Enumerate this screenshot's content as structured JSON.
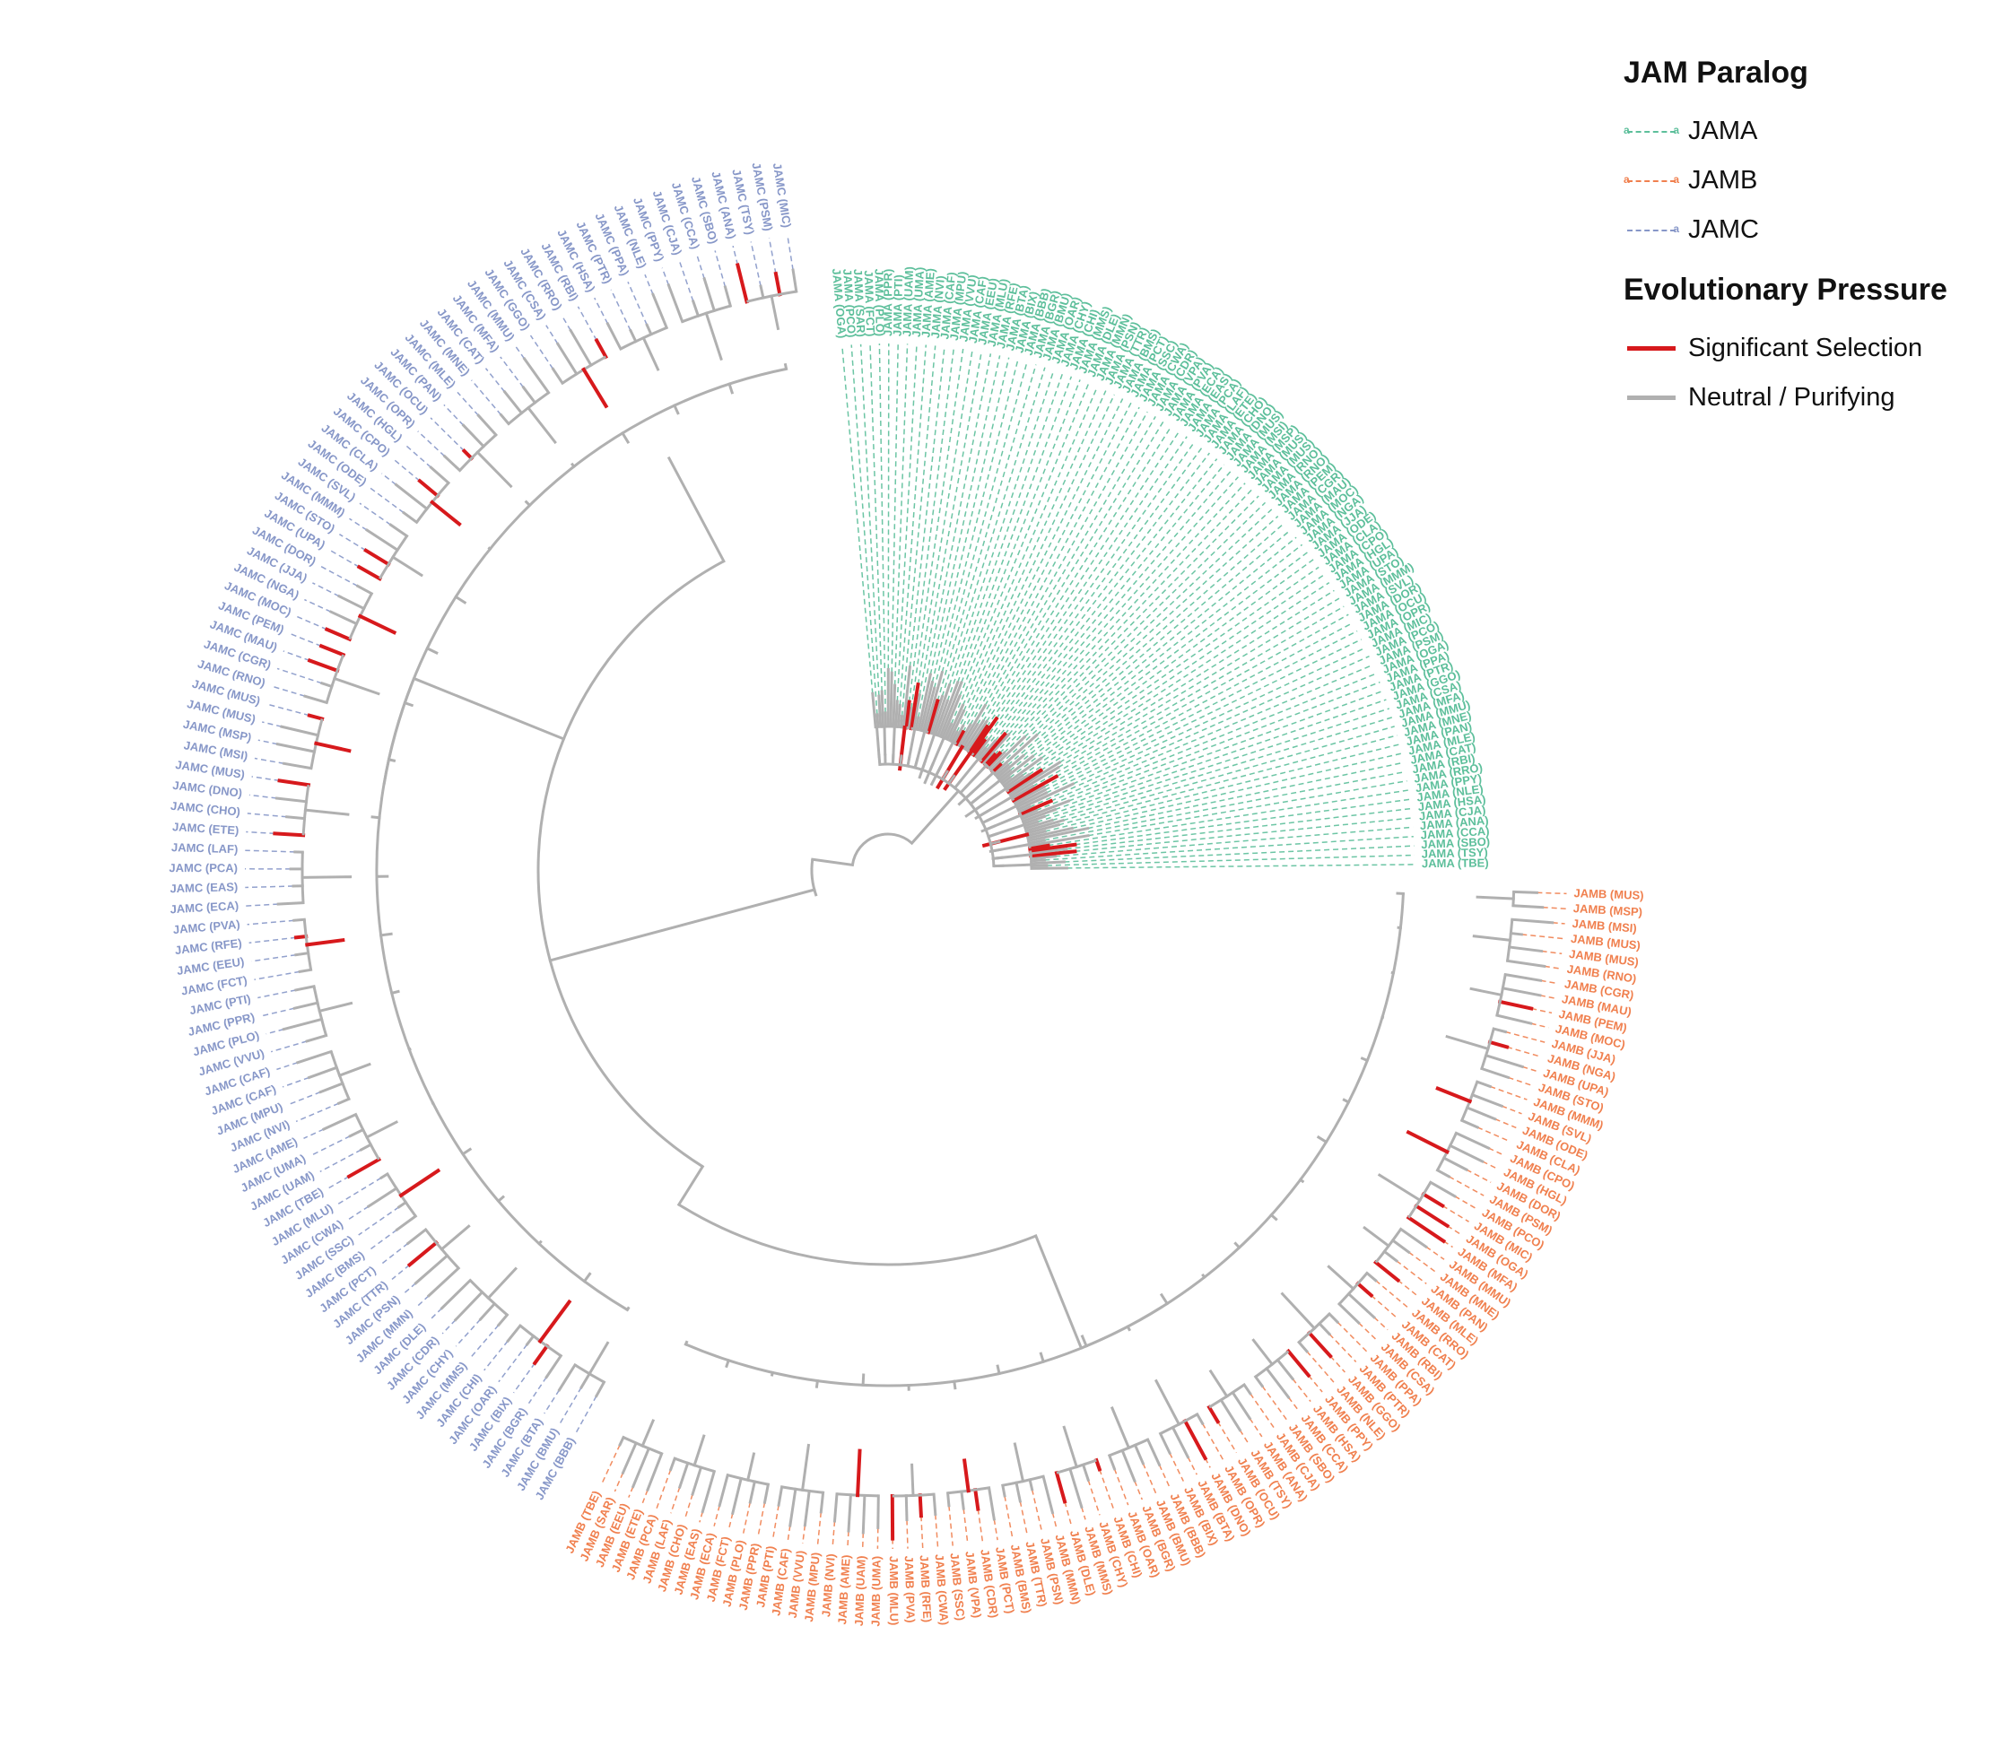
{
  "legend": {
    "paralog_title": "JAM Paralog",
    "paralogs": [
      {
        "label": "JAMA",
        "color": "#5dbf9b"
      },
      {
        "label": "JAMB",
        "color": "#f0804f"
      },
      {
        "label": "JAMC",
        "color": "#8797c8"
      }
    ],
    "pressure_title": "Evolutionary Pressure",
    "pressure": [
      {
        "label": "Significant Selection",
        "color": "#d7191c"
      },
      {
        "label": "Neutral / Purifying",
        "color": "#b0b0b0"
      }
    ]
  },
  "tree": {
    "clades": [
      {
        "paralog": "JAMA",
        "color": "#5dbf9b",
        "tips": [
          "TBE",
          "TSY",
          "SBO",
          "CCA",
          "ANA",
          "CJA",
          "HSA",
          "NLE",
          "PPY",
          "RRO",
          "RBI",
          "CAT",
          "MLE",
          "PAN",
          "MNE",
          "MMU",
          "MFA",
          "CSA",
          "GGO",
          "PTR",
          "PPA",
          "OGA",
          "PSM",
          "PCO",
          "MIC",
          "OPR",
          "OCU",
          "DOR",
          "SVL",
          "MMM",
          "STO",
          "UPA",
          "HGL",
          "CPO",
          "CLA",
          "ODE",
          "JJA",
          "NGA",
          "MOC",
          "MAU",
          "CGR",
          "PEM",
          "RNO",
          "RNO",
          "MUS",
          "MUS",
          "MSP",
          "MSI",
          "MUS",
          "DNO",
          "CHO",
          "ETE",
          "LAF",
          "PCA",
          "EAS",
          "ECA",
          "PVA",
          "VPA",
          "CDR",
          "CWA",
          "SSC",
          "PCT",
          "BMS",
          "TTR",
          "PSN",
          "MMN",
          "DLE",
          "MMS",
          "CHI",
          "CHY",
          "OAR",
          "BMU",
          "BGR",
          "BBB",
          "BIX",
          "BTA",
          "RFE",
          "MLU",
          "EEU",
          "CAF",
          "VVU",
          "MPU",
          "CAF",
          "NVI",
          "AME",
          "UMA",
          "UAM",
          "PTI",
          "PPR",
          "PLO",
          "FCT",
          "SAR",
          "PCO",
          "OGA"
        ]
      },
      {
        "paralog": "JAMC",
        "color": "#8797c8",
        "tips": [
          "MIC",
          "PSM",
          "TSY",
          "ANA",
          "SBO",
          "CCA",
          "CJA",
          "PPY",
          "NLE",
          "PPA",
          "PTR",
          "HSA",
          "RBI",
          "RRO",
          "CSA",
          "GGO",
          "MMU",
          "MFA",
          "CAT",
          "MNE",
          "MLE",
          "PAN",
          "OCU",
          "OPR",
          "HGL",
          "CPO",
          "CLA",
          "ODE",
          "SVL",
          "MMM",
          "STO",
          "UPA",
          "DOR",
          "JJA",
          "NGA",
          "MOC",
          "PEM",
          "MAU",
          "CGR",
          "RNO",
          "MUS",
          "MUS",
          "MSP",
          "MSI",
          "MUS",
          "DNO",
          "CHO",
          "ETE",
          "LAF",
          "PCA",
          "EAS",
          "ECA",
          "PVA",
          "RFE",
          "EEU",
          "FCT",
          "PTI",
          "PPR",
          "PLO",
          "VVU",
          "CAF",
          "CAF",
          "MPU",
          "NVI",
          "AME",
          "UMA",
          "UAM",
          "TBE",
          "MLU",
          "CWA",
          "SSC",
          "BMS",
          "PCT",
          "TTR",
          "PSN",
          "MMN",
          "DLE",
          "CDR",
          "CHY",
          "MMS",
          "CHI",
          "OAR",
          "BIX",
          "BGR",
          "BTA",
          "BMU",
          "BBB"
        ]
      },
      {
        "paralog": "JAMB",
        "color": "#f0804f",
        "tips": [
          "TBE",
          "SAR",
          "EEU",
          "ETE",
          "PCA",
          "LAF",
          "CHO",
          "EAS",
          "ECA",
          "FCT",
          "PLO",
          "PPR",
          "PTI",
          "CAF",
          "VVU",
          "MPU",
          "NVI",
          "AME",
          "UAM",
          "UMA",
          "MLU",
          "PVA",
          "RFE",
          "CWA",
          "SSC",
          "VPA",
          "CDR",
          "PCT",
          "BMS",
          "TTR",
          "PSN",
          "MMN",
          "DLE",
          "MMS",
          "CHY",
          "CHI",
          "OAR",
          "BGR",
          "BMU",
          "BBB",
          "BIX",
          "BTA",
          "DNO",
          "OPR",
          "OCU",
          "TSY",
          "ANA",
          "CJA",
          "SBO",
          "CCA",
          "HSA",
          "PPY",
          "NLE",
          "GGO",
          "PTR",
          "PPA",
          "CSA",
          "RBI",
          "CAT",
          "RRO",
          "MLE",
          "PAN",
          "MNE",
          "MMU",
          "MFA",
          "OGA",
          "MIC",
          "PCO",
          "PSM",
          "DOR",
          "HGL",
          "CPO",
          "CLA",
          "ODE",
          "SVL",
          "MMM",
          "STO",
          "UPA",
          "NGA",
          "JJA",
          "MOC",
          "PEM",
          "MAU",
          "CGR",
          "RNO",
          "MUS",
          "MUS",
          "MSI",
          "MSP",
          "MUS"
        ]
      }
    ]
  }
}
